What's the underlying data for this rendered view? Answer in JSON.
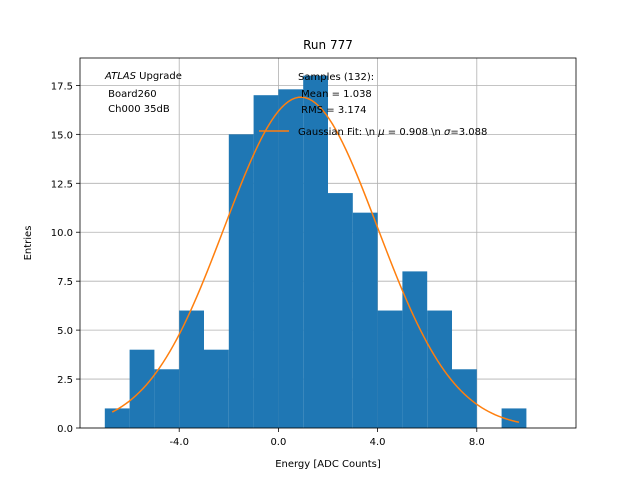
{
  "chart_data": {
    "type": "bar",
    "title": "Run 777",
    "xlabel": "Energy [ADC Counts]",
    "ylabel": "Entries",
    "xlim": [
      -8.0,
      12.0
    ],
    "ylim": [
      0,
      18.9
    ],
    "grid": true,
    "bin_width": 1.0,
    "bins": [
      {
        "x0": -7,
        "x1": -6,
        "value": 1
      },
      {
        "x0": -6,
        "x1": -5,
        "value": 4
      },
      {
        "x0": -5,
        "x1": -4,
        "value": 3
      },
      {
        "x0": -4,
        "x1": -3,
        "value": 6
      },
      {
        "x0": -3,
        "x1": -2,
        "value": 4
      },
      {
        "x0": -2,
        "x1": -1,
        "value": 15
      },
      {
        "x0": -1,
        "x1": 0,
        "value": 17
      },
      {
        "x0": 0,
        "x1": 1,
        "value": 17.3
      },
      {
        "x0": 1,
        "x1": 2,
        "value": 18
      },
      {
        "x0": 2,
        "x1": 3,
        "value": 12
      },
      {
        "x0": 3,
        "x1": 4,
        "value": 11
      },
      {
        "x0": 4,
        "x1": 5,
        "value": 6
      },
      {
        "x0": 5,
        "x1": 6,
        "value": 8
      },
      {
        "x0": 6,
        "x1": 7,
        "value": 6
      },
      {
        "x0": 7,
        "x1": 8,
        "value": 3
      },
      {
        "x0": 8,
        "x1": 9,
        "value": 0
      },
      {
        "x0": 9,
        "x1": 10,
        "value": 1
      }
    ],
    "xticks": [
      -4.0,
      0.0,
      4.0,
      8.0
    ],
    "xtick_labels": [
      "-4.0",
      "0.0",
      "4.0",
      "8.0"
    ],
    "yticks": [
      0.0,
      2.5,
      5.0,
      7.5,
      10.0,
      12.5,
      15.0,
      17.5
    ],
    "ytick_labels": [
      "0.0",
      "2.5",
      "5.0",
      "7.5",
      "10.0",
      "12.5",
      "15.0",
      "17.5"
    ],
    "fit": {
      "name": "Gaussian Fit",
      "mean": 0.908,
      "sigma": 3.088,
      "amplitude": 16.9,
      "x_range": [
        -6.7,
        9.7
      ],
      "color": "#ff7f0e"
    },
    "bar_color": "#1f77b4",
    "legend_placement": "top-right",
    "legend_entries": [
      "Samples (132):\n Mean = 1.038\n RMS = 3.174",
      "Gaussian Fit: \\n $\\mu$ = 0.908 \\n $\\sigma$=3.088"
    ]
  },
  "annotation": {
    "experiment": "ATLAS",
    "tag": " Upgrade",
    "board": " Board260",
    "channel": " Ch000 35dB"
  },
  "legend": {
    "samples_line1": "Samples (132):",
    "samples_line2": " Mean = 1.038",
    "samples_line3": " RMS = 3.174",
    "fit_prefix": "Gaussian Fit: \\n ",
    "fit_mu_sym": "μ",
    "fit_mu_val": " = 0.908 \\n ",
    "fit_sigma_sym": "σ",
    "fit_sigma_val": "=3.088"
  }
}
